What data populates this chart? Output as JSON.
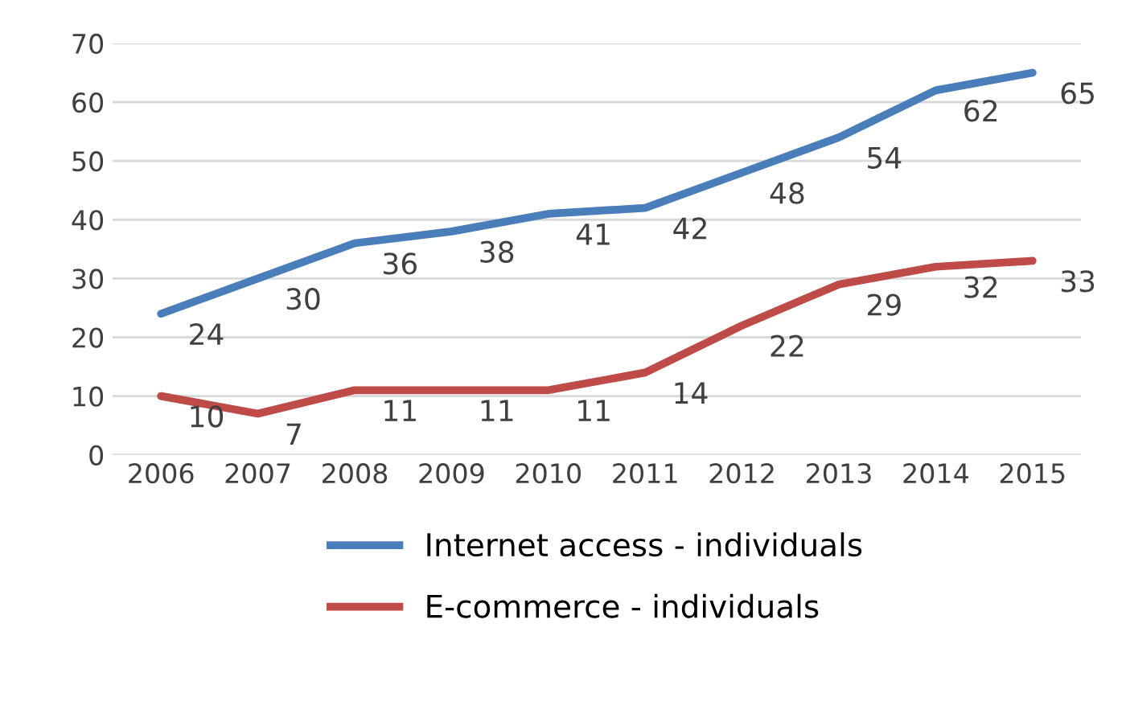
{
  "chart_data": {
    "type": "line",
    "categories": [
      "2006",
      "2007",
      "2008",
      "2009",
      "2010",
      "2011",
      "2012",
      "2013",
      "2014",
      "2015"
    ],
    "series": [
      {
        "name": "Internet access - individuals",
        "color": "#4a7ebb",
        "values": [
          24,
          30,
          36,
          38,
          41,
          42,
          48,
          54,
          62,
          65
        ]
      },
      {
        "name": "E-commerce - individuals",
        "color": "#be4b48",
        "values": [
          10,
          7,
          11,
          11,
          11,
          14,
          22,
          29,
          32,
          33
        ]
      }
    ],
    "ylim": [
      0,
      70
    ],
    "yticks": [
      0,
      10,
      20,
      30,
      40,
      50,
      60,
      70
    ],
    "grid": "y",
    "legend": "bottom",
    "data_labels": true,
    "marker": "none",
    "line_style": "solid"
  }
}
